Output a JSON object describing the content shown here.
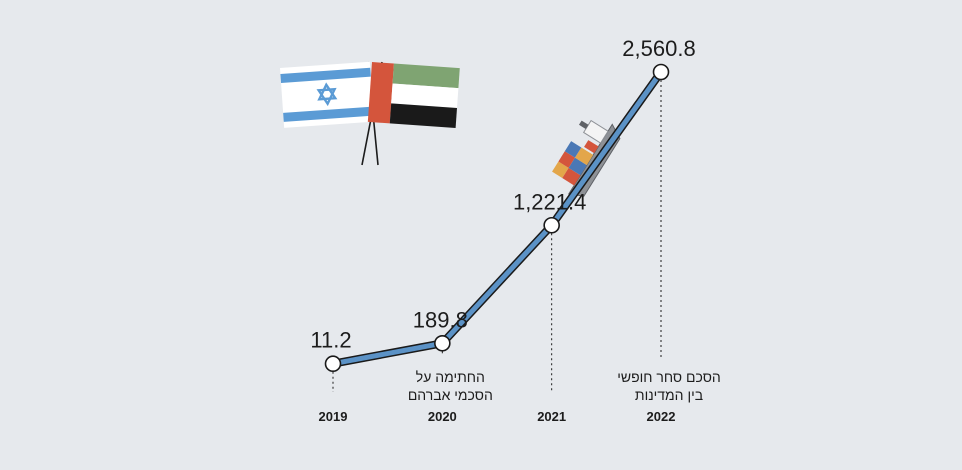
{
  "chart_data": {
    "type": "line",
    "title": "",
    "xlabel": "",
    "ylabel": "",
    "x": [
      "2019",
      "2020",
      "2021",
      "2022"
    ],
    "series": [
      {
        "values": [
          11.2,
          189.8,
          1221.4,
          2560.8
        ],
        "value_labels": [
          "11.2",
          "189.8",
          "1,221.4",
          "2,560.8"
        ]
      }
    ],
    "ylim": [
      0,
      2560.8
    ],
    "grid": false,
    "annotations": [
      {
        "x": "2020",
        "lines": [
          "החתימה על",
          "הסכמי אברהם"
        ]
      },
      {
        "x": "2022",
        "lines": [
          "הסכם סחר חופשי",
          "בין המדינות"
        ]
      }
    ],
    "line_color": "#5b92c6",
    "line_outline_color": "#1a1a1a",
    "marker_fill": "#ffffff"
  },
  "decorations": {
    "flags": [
      "israel-flag",
      "uae-flag"
    ],
    "illustration": "cargo-ship-icon"
  }
}
